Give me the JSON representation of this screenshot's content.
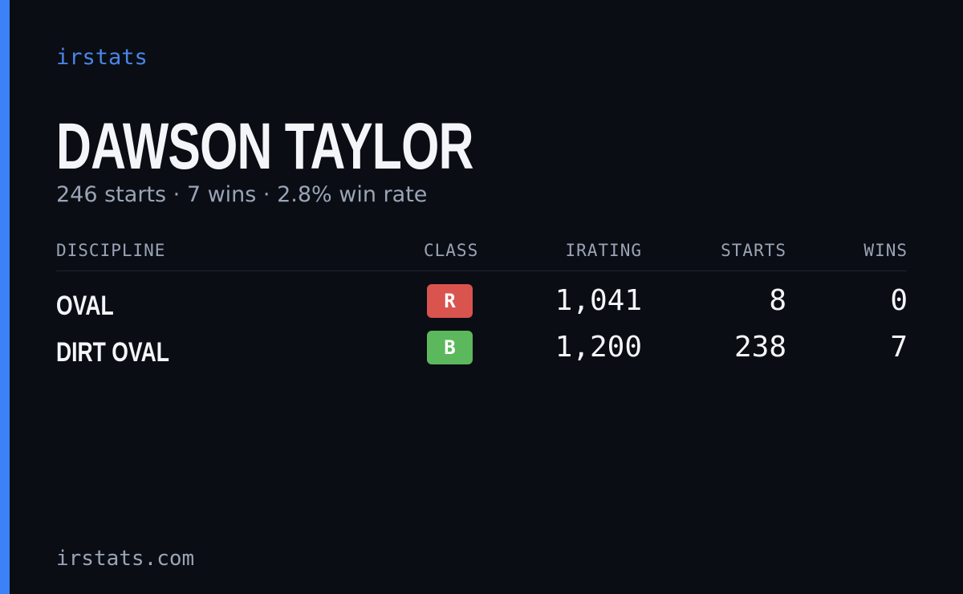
{
  "brand": "irstats",
  "driver": {
    "name": "DAWSON TAYLOR",
    "summary": "246 starts · 7 wins · 2.8% win rate"
  },
  "table": {
    "headers": [
      "DISCIPLINE",
      "CLASS",
      "IRATING",
      "STARTS",
      "WINS"
    ],
    "rows": [
      {
        "discipline": "OVAL",
        "class": "R",
        "class_color": "#d9534f",
        "irating": "1,041",
        "starts": 8,
        "wins": 0
      },
      {
        "discipline": "DIRT OVAL",
        "class": "B",
        "class_color": "#5cb85c",
        "irating": "1,200",
        "starts": 238,
        "wins": 7
      }
    ]
  },
  "footer": "irstats.com"
}
